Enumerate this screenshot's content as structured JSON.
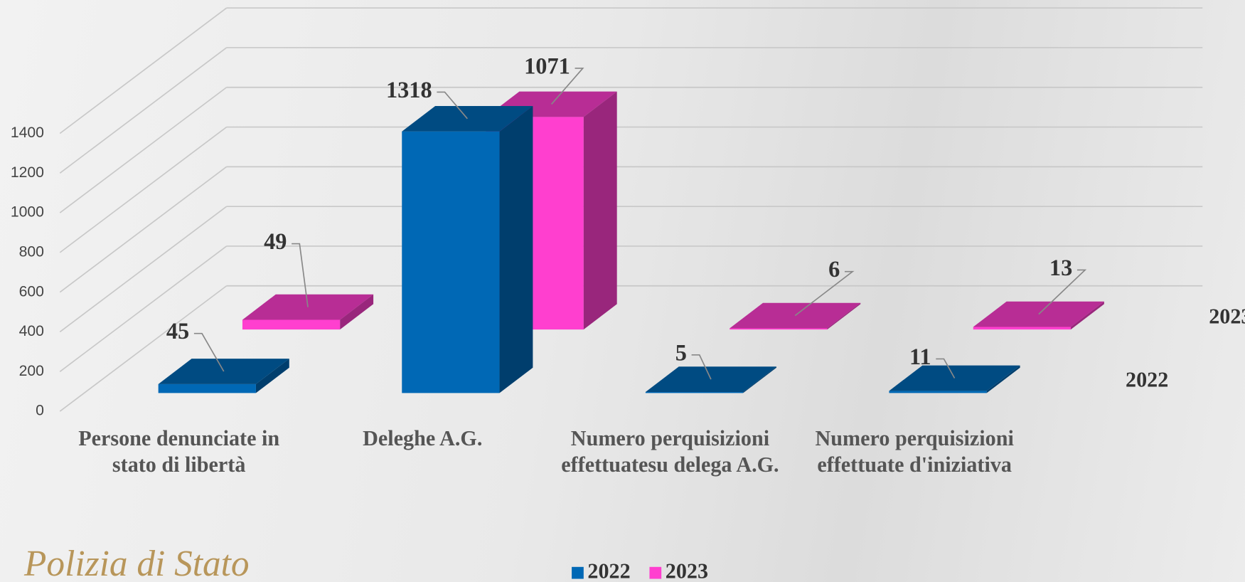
{
  "chart_data": {
    "type": "bar3d",
    "categories": [
      "Persone denunciate in stato di libertà",
      "Deleghe A.G.",
      "Numero perquisizioni effettuatesu delega A.G.",
      "Numero perquisizioni effettuate d'iniziativa"
    ],
    "series": [
      {
        "name": "2022",
        "color": "#0068b5",
        "values": [
          45,
          1318,
          5,
          11
        ]
      },
      {
        "name": "2023",
        "color": "#ff3fcf",
        "values": [
          49,
          1071,
          6,
          13
        ]
      }
    ],
    "ylim": [
      0,
      1400
    ],
    "yticks": [
      0,
      200,
      400,
      600,
      800,
      1000,
      1200,
      1400
    ],
    "grid": true,
    "legend": "bottom",
    "logo_text": "Polizia di Stato"
  }
}
